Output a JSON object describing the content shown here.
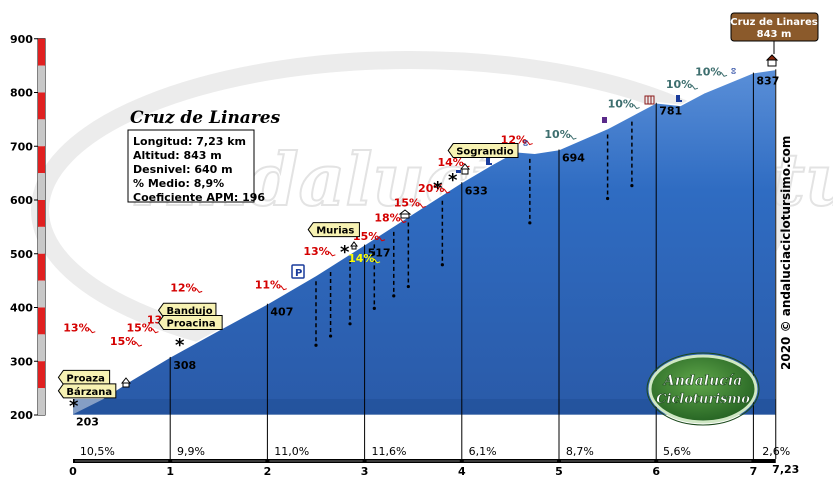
{
  "chart_data": {
    "type": "area",
    "title": "Cruz de Linares",
    "info": [
      "Longitud: 7,23 km",
      "Altitud: 843 m",
      "Desnivel: 640 m",
      "% Medio: 8,9%",
      "Coeficiente APM: 196"
    ],
    "xlim": [
      0,
      7.23
    ],
    "ylim": [
      200,
      900
    ],
    "x_ticks": [
      "0",
      "1",
      "2",
      "3",
      "4",
      "5",
      "6",
      "7",
      "7,23"
    ],
    "y_ticks": [
      "200",
      "300",
      "400",
      "500",
      "600",
      "700",
      "800",
      "900"
    ],
    "profile": [
      {
        "x": 0,
        "y": 203
      },
      {
        "x": 0.3,
        "y": 230
      },
      {
        "x": 0.6,
        "y": 265
      },
      {
        "x": 1.0,
        "y": 308
      },
      {
        "x": 1.5,
        "y": 358
      },
      {
        "x": 2.0,
        "y": 407
      },
      {
        "x": 2.5,
        "y": 460
      },
      {
        "x": 3.0,
        "y": 517
      },
      {
        "x": 3.5,
        "y": 575
      },
      {
        "x": 4.0,
        "y": 633
      },
      {
        "x": 4.3,
        "y": 665
      },
      {
        "x": 4.55,
        "y": 690
      },
      {
        "x": 4.75,
        "y": 687
      },
      {
        "x": 5.0,
        "y": 694
      },
      {
        "x": 5.5,
        "y": 733
      },
      {
        "x": 6.0,
        "y": 781
      },
      {
        "x": 6.25,
        "y": 776
      },
      {
        "x": 6.5,
        "y": 800
      },
      {
        "x": 7.0,
        "y": 837
      },
      {
        "x": 7.23,
        "y": 843
      }
    ],
    "km_elevations": [
      {
        "x": 0,
        "y": 203,
        "label": "203"
      },
      {
        "x": 1,
        "y": 308,
        "label": "308"
      },
      {
        "x": 2,
        "y": 407,
        "label": "407"
      },
      {
        "x": 3,
        "y": 517,
        "label": "517"
      },
      {
        "x": 4,
        "y": 633,
        "label": "633"
      },
      {
        "x": 5,
        "y": 694,
        "label": "694"
      },
      {
        "x": 6,
        "y": 781,
        "label": "781"
      },
      {
        "x": 7,
        "y": 837,
        "label": "837"
      }
    ],
    "segment_gradients": [
      {
        "x": 0.05,
        "label": "10,5%"
      },
      {
        "x": 1.05,
        "label": "9,9%"
      },
      {
        "x": 2.05,
        "label": "11,0%"
      },
      {
        "x": 3.05,
        "label": "11,6%"
      },
      {
        "x": 4.05,
        "label": "6,1%"
      },
      {
        "x": 5.05,
        "label": "8,7%"
      },
      {
        "x": 6.05,
        "label": "5,6%"
      },
      {
        "x": 7.07,
        "label": "2,6%"
      }
    ],
    "gradient_labels": [
      {
        "x": -0.1,
        "y": 355,
        "label": "13%",
        "color": "red"
      },
      {
        "x": 0.38,
        "y": 330,
        "label": "15%",
        "color": "red"
      },
      {
        "x": 0.55,
        "y": 355,
        "label": "15%",
        "color": "red"
      },
      {
        "x": 0.76,
        "y": 370,
        "label": "13%",
        "color": "red"
      },
      {
        "x": 1.0,
        "y": 430,
        "label": "12%",
        "color": "red"
      },
      {
        "x": 1.87,
        "y": 435,
        "label": "11%",
        "color": "red"
      },
      {
        "x": 2.37,
        "y": 498,
        "label": "13%",
        "color": "red"
      },
      {
        "x": 2.88,
        "y": 526,
        "label": "15%",
        "color": "red"
      },
      {
        "x": 2.83,
        "y": 485,
        "label": "14%",
        "color": "yellow"
      },
      {
        "x": 3.1,
        "y": 560,
        "label": "18%",
        "color": "red"
      },
      {
        "x": 3.3,
        "y": 588,
        "label": "15%",
        "color": "red"
      },
      {
        "x": 3.55,
        "y": 615,
        "label": "20%",
        "color": "red"
      },
      {
        "x": 3.75,
        "y": 663,
        "label": "14%",
        "color": "red"
      },
      {
        "x": 4.4,
        "y": 705,
        "label": "12%",
        "color": "red"
      },
      {
        "x": 4.85,
        "y": 715,
        "label": "10%",
        "color": "teal"
      },
      {
        "x": 5.5,
        "y": 772,
        "label": "10%",
        "color": "teal"
      },
      {
        "x": 6.1,
        "y": 808,
        "label": "10%",
        "color": "teal"
      },
      {
        "x": 6.4,
        "y": 832,
        "label": "10%",
        "color": "teal"
      }
    ],
    "places": [
      {
        "label": "Proaza",
        "x": -0.15,
        "y": 270
      },
      {
        "label": "Bárzana",
        "x": -0.15,
        "y": 245
      },
      {
        "label": "Bandujo",
        "x": 0.88,
        "y": 395
      },
      {
        "label": "Proacina",
        "x": 0.88,
        "y": 372
      },
      {
        "label": "Murias",
        "x": 2.42,
        "y": 545
      },
      {
        "label": "Sograndio",
        "x": 3.86,
        "y": 692
      }
    ],
    "summit_label": "Cruz de Linares",
    "summit_elevation": "843 m",
    "credit": "2020 © andaluciaciclotursimo.com",
    "watermark": "Andalucía Cicloturismo",
    "logo_text_1": "Andalucía",
    "logo_text_2": "Cicloturismo",
    "colors": {
      "profile_fill": "#2a63b8",
      "profile_top": "#5a8fd8",
      "scale_red": "#e02020",
      "scale_gray": "#c8c8c8",
      "summit_box": "#8b5a2b",
      "place_box": "#f7f2b3",
      "logo_green": "#1c4a1c"
    }
  }
}
